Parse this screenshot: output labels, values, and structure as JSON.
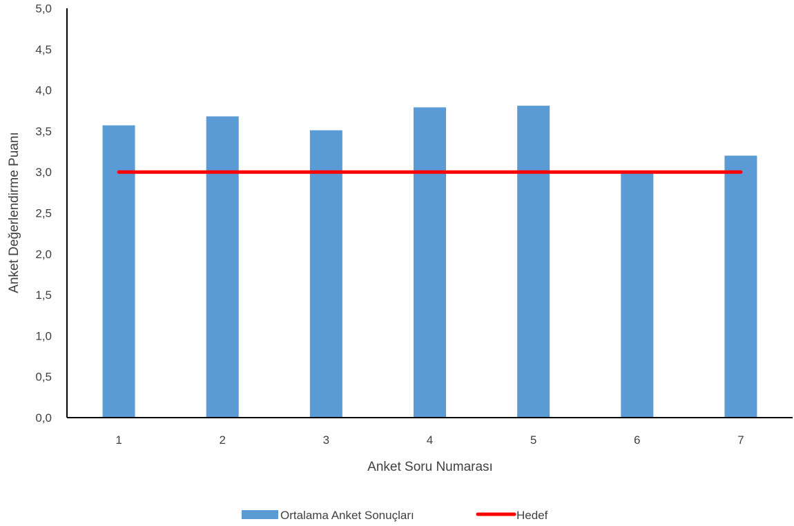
{
  "chart_data": {
    "type": "bar",
    "title": "",
    "xlabel": "Anket Soru Numarası",
    "ylabel": "Anket Değerlendirme Puanı",
    "categories": [
      "1",
      "2",
      "3",
      "4",
      "5",
      "6",
      "7"
    ],
    "ylim": [
      0,
      5
    ],
    "ytick_step": 0.5,
    "ytick_labels": [
      "0,0",
      "0,5",
      "1,0",
      "1,5",
      "2,0",
      "2,5",
      "3,0",
      "3,5",
      "4,0",
      "4,5",
      "5,0"
    ],
    "grid": false,
    "legend_position": "bottom",
    "series": [
      {
        "name": "Ortalama Anket Sonuçları",
        "kind": "bar",
        "color": "#5B9BD5",
        "values": [
          3.57,
          3.68,
          3.51,
          3.79,
          3.81,
          3.0,
          3.2
        ]
      },
      {
        "name": "Hedef",
        "kind": "line",
        "color": "#FF0000",
        "values": [
          3.0,
          3.0,
          3.0,
          3.0,
          3.0,
          3.0,
          3.0
        ]
      }
    ]
  }
}
